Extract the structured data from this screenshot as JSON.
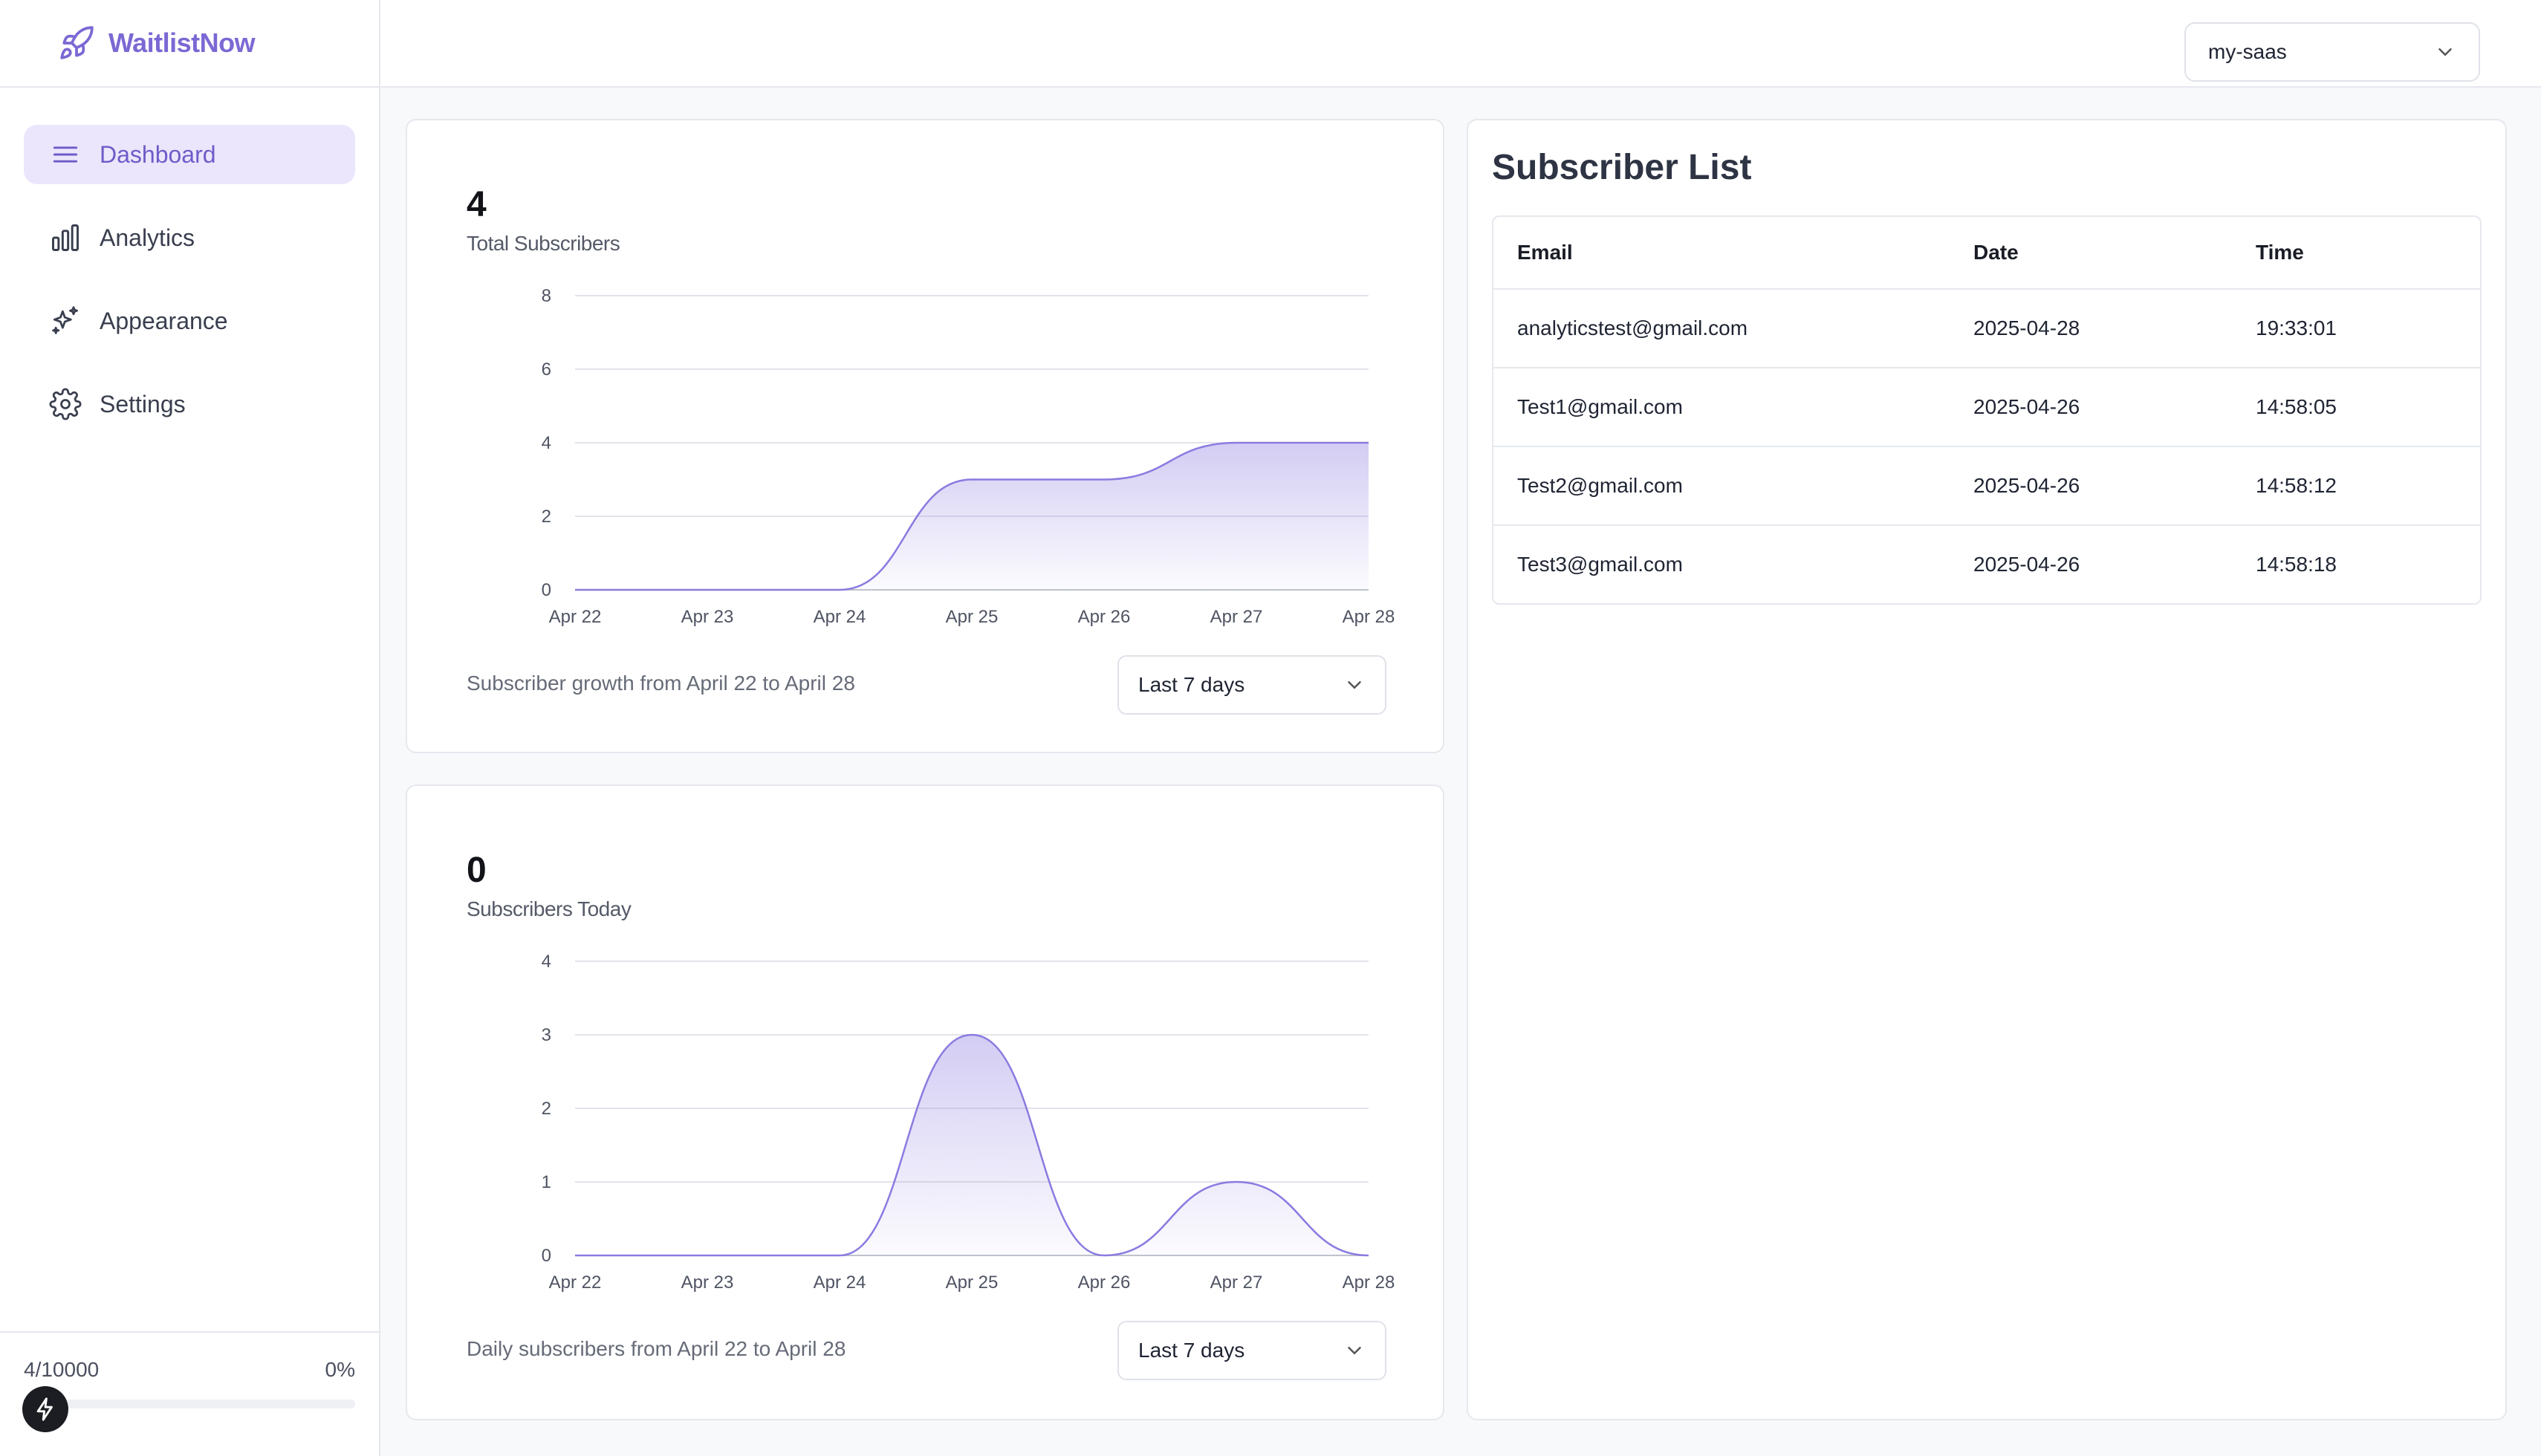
{
  "brand": {
    "name": "WaitlistNow"
  },
  "sidebar": {
    "items": [
      {
        "label": "Dashboard",
        "icon": "menu-icon",
        "active": true
      },
      {
        "label": "Analytics",
        "icon": "bar-chart-icon",
        "active": false
      },
      {
        "label": "Appearance",
        "icon": "sparkles-icon",
        "active": false
      },
      {
        "label": "Settings",
        "icon": "gear-icon",
        "active": false
      }
    ],
    "usage": {
      "count": "4/10000",
      "percent": "0%",
      "fraction": 0.0004
    }
  },
  "topbar": {
    "project": "my-saas"
  },
  "colors": {
    "accent": "#7c68d4",
    "chart_line": "#8a7be0",
    "active_bg": "#ebe6fb"
  },
  "total_card": {
    "stat": "4",
    "label": "Total Subscribers",
    "footer": "Subscriber growth from April 22 to April 28",
    "range": "Last 7 days"
  },
  "today_card": {
    "stat": "0",
    "label": "Subscribers Today",
    "footer": "Daily subscribers from April 22 to April 28",
    "range": "Last 7 days"
  },
  "chart_data": [
    {
      "type": "area",
      "x": [
        "Apr 22",
        "Apr 23",
        "Apr 24",
        "Apr 25",
        "Apr 26",
        "Apr 27",
        "Apr 28"
      ],
      "values": [
        0,
        0,
        0,
        3,
        3,
        4,
        4
      ],
      "yticks": [
        0,
        2,
        4,
        6,
        8
      ],
      "ylim": [
        0,
        8
      ],
      "grid": true
    },
    {
      "type": "area",
      "x": [
        "Apr 22",
        "Apr 23",
        "Apr 24",
        "Apr 25",
        "Apr 26",
        "Apr 27",
        "Apr 28"
      ],
      "values": [
        0,
        0,
        0,
        3,
        0,
        1,
        0
      ],
      "yticks": [
        0,
        1,
        2,
        3,
        4
      ],
      "ylim": [
        0,
        4
      ],
      "grid": true
    }
  ],
  "subscriber_list": {
    "title": "Subscriber List",
    "headers": [
      "Email",
      "Date",
      "Time"
    ],
    "rows": [
      [
        "analyticstest@gmail.com",
        "2025-04-28",
        "19:33:01"
      ],
      [
        "Test1@gmail.com",
        "2025-04-26",
        "14:58:05"
      ],
      [
        "Test2@gmail.com",
        "2025-04-26",
        "14:58:12"
      ],
      [
        "Test3@gmail.com",
        "2025-04-26",
        "14:58:18"
      ]
    ]
  }
}
